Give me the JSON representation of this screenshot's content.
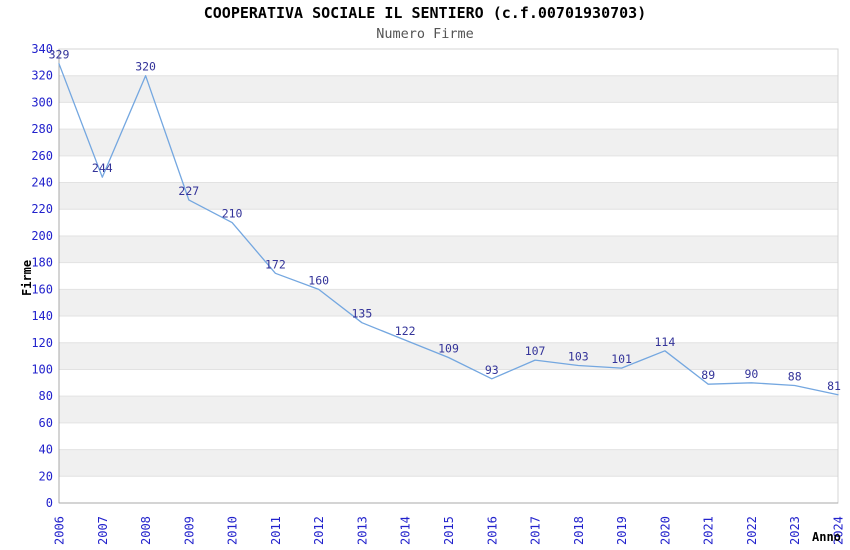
{
  "chart_data": {
    "type": "line",
    "title": "COOPERATIVA SOCIALE IL SENTIERO (c.f.00701930703)",
    "subtitle": "Numero Firme",
    "xlabel": "Anno",
    "ylabel": "Firme",
    "categories": [
      "2006",
      "2007",
      "2008",
      "2009",
      "2010",
      "2011",
      "2012",
      "2013",
      "2014",
      "2015",
      "2016",
      "2017",
      "2018",
      "2019",
      "2020",
      "2021",
      "2022",
      "2023",
      "2024"
    ],
    "values": [
      329,
      244,
      320,
      227,
      210,
      172,
      160,
      135,
      122,
      109,
      93,
      107,
      103,
      101,
      114,
      89,
      90,
      88,
      81
    ],
    "ylim": [
      0,
      340
    ],
    "ytick_step": 20,
    "grid": true,
    "banded_background": true,
    "legend_position": "none",
    "data_labels": true
  },
  "colors": {
    "line": "#74a7e0",
    "tick_label": "#2222cc",
    "data_label": "#333399",
    "band": "#f0f0f0",
    "gridline": "#e2e2e2",
    "axis": "#a8a8a8",
    "border": "#d4d4d4",
    "title": "#000000",
    "subtitle": "#545454",
    "background": "#ffffff"
  }
}
